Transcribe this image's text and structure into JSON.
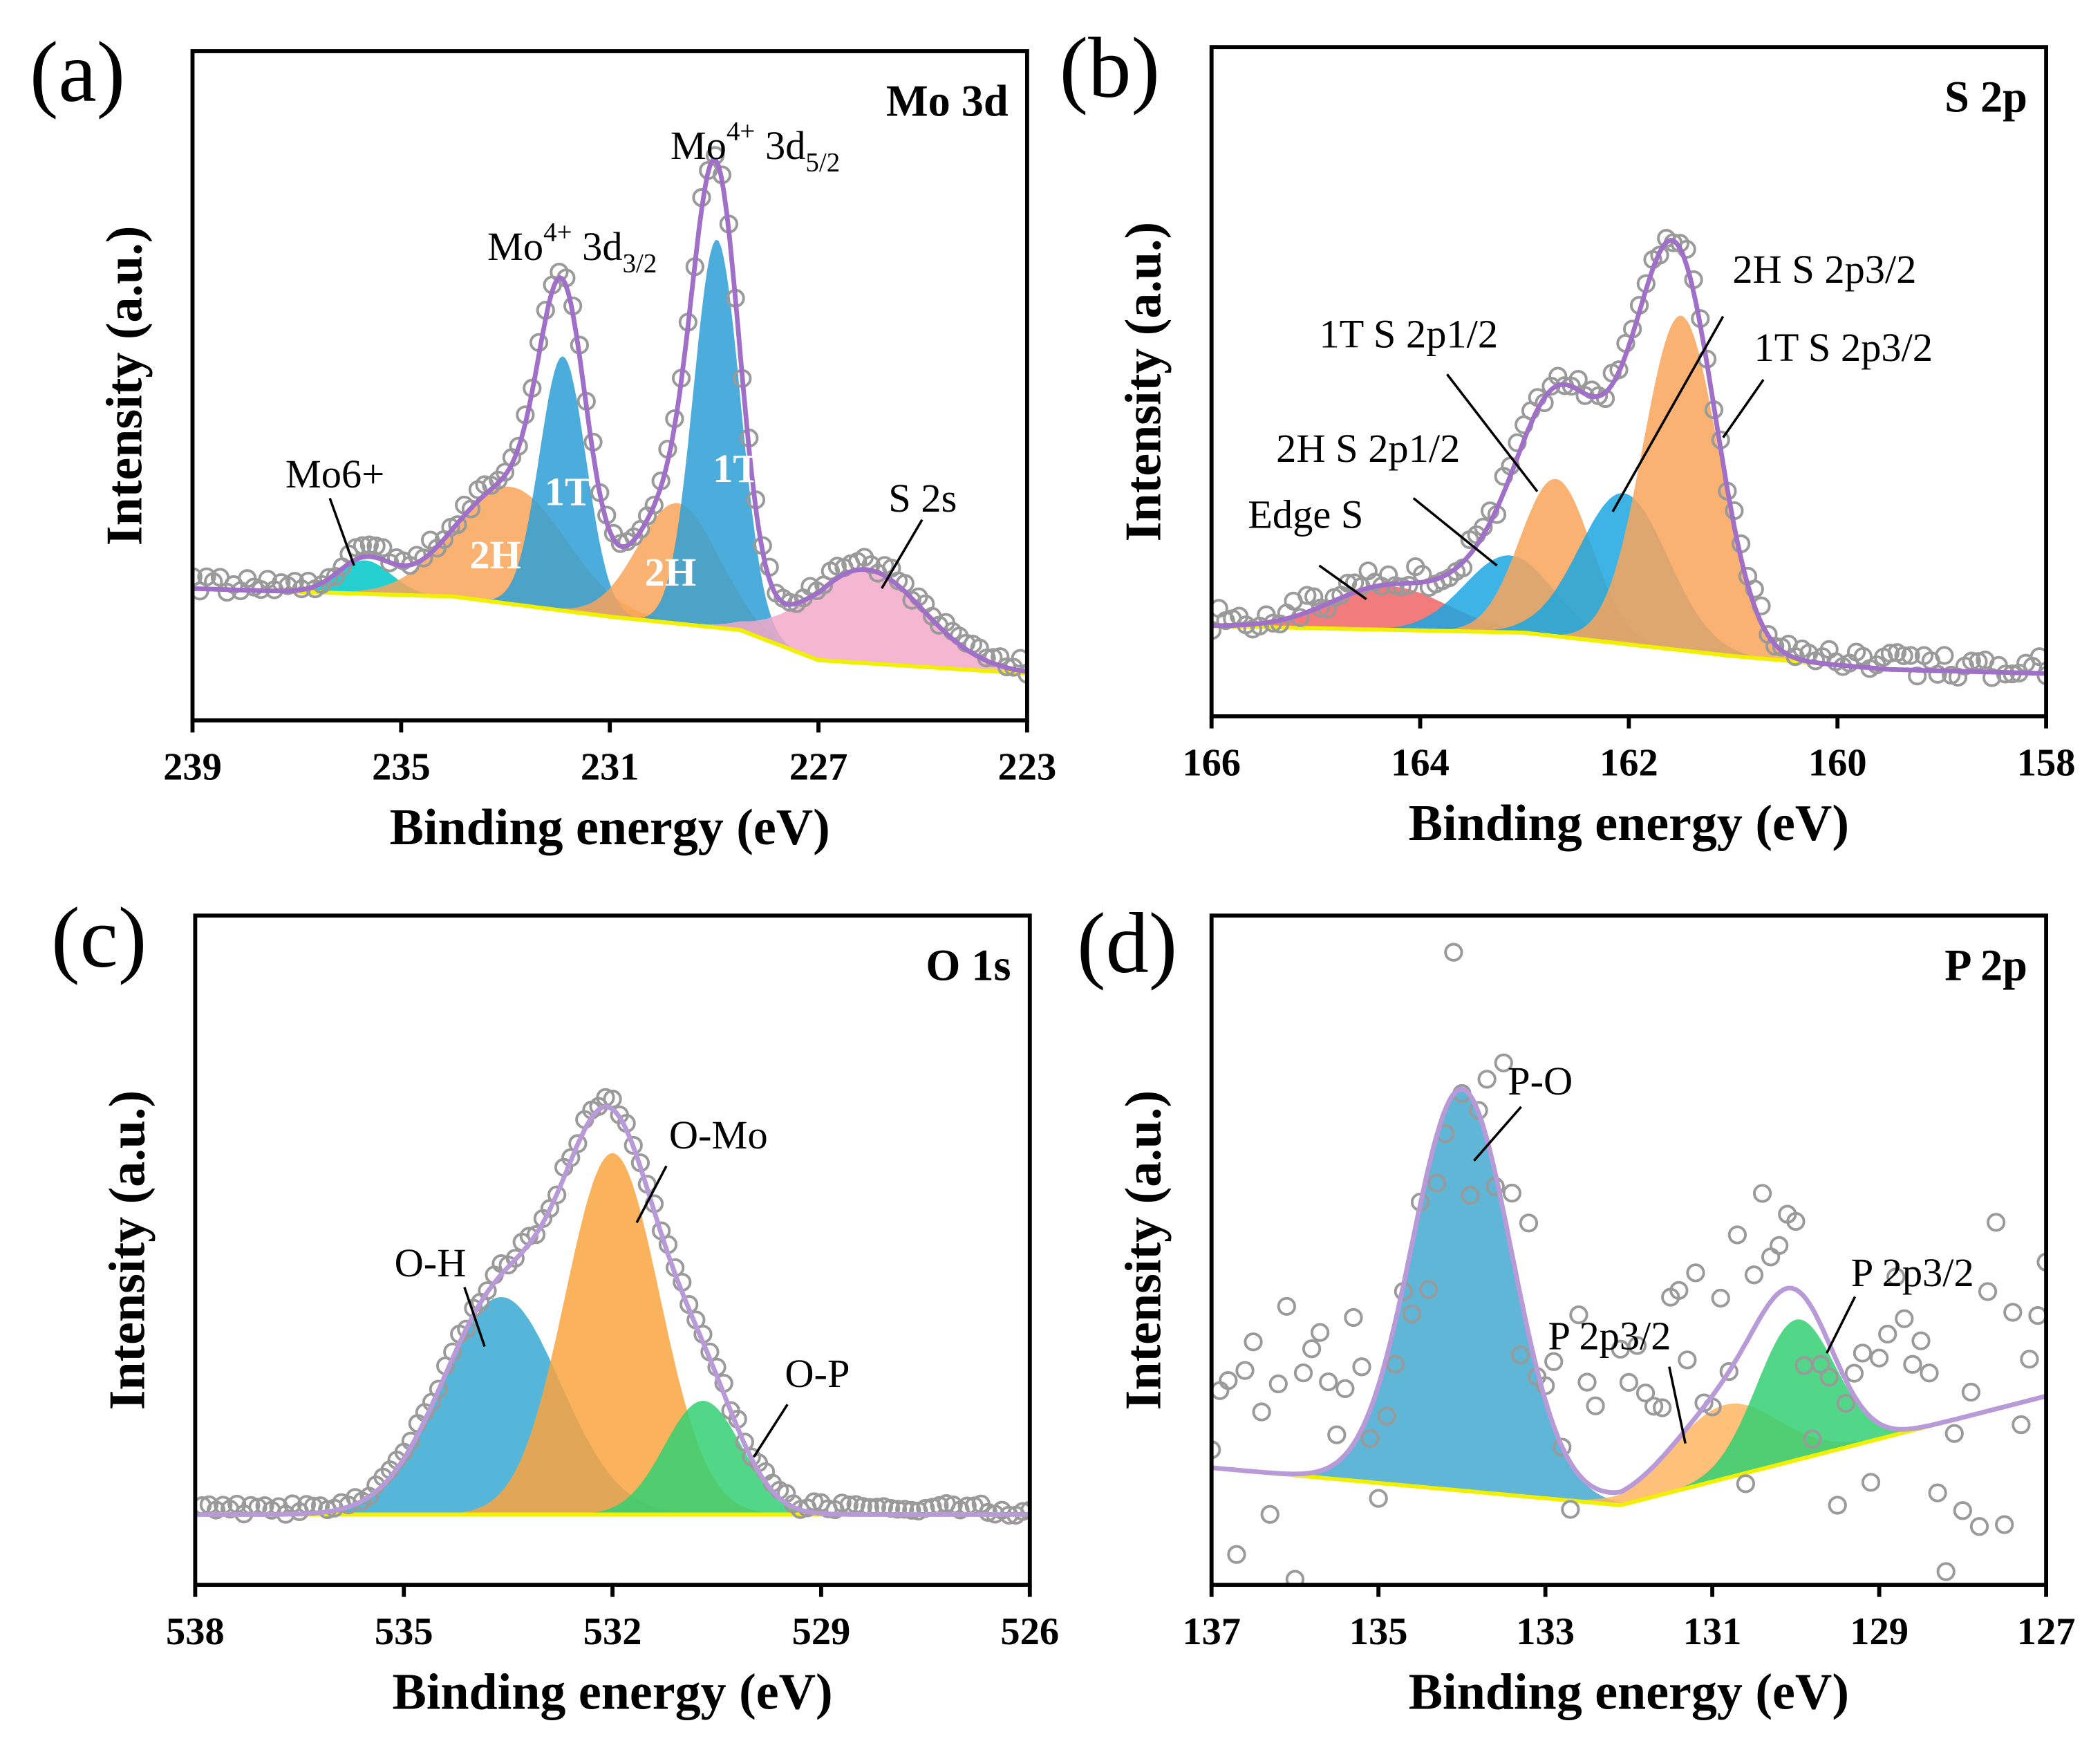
{
  "chart_data": [
    {
      "type": "area",
      "panel_letter": "(a)",
      "title": "Mo 3d",
      "xlabel": "Binding energy (eV)",
      "ylabel": "Intensity (a.u.)",
      "xlim": [
        239,
        223
      ],
      "xticks": [
        "239",
        "235",
        "231",
        "227",
        "223"
      ],
      "x_reversed": true,
      "ylim": [
        0,
        100
      ],
      "grid": false,
      "baseline": [
        [
          239,
          19.7
        ],
        [
          234,
          18.5
        ],
        [
          231,
          15.5
        ],
        [
          228.5,
          13.5
        ],
        [
          227,
          9
        ],
        [
          223,
          7
        ]
      ],
      "peaks": [
        {
          "label": "Mo6+",
          "center": 235.7,
          "height": 5,
          "fwhm": 1.2,
          "color": "#00c8c8"
        },
        {
          "label": "2H",
          "center": 232.9,
          "height": 17.5,
          "fwhm": 2.5,
          "color": "#f9a55a"
        },
        {
          "label": "1T",
          "center": 231.9,
          "height": 38,
          "fwhm": 1.05,
          "color": "#2d9fd6"
        },
        {
          "label": "2H",
          "center": 229.7,
          "height": 18,
          "fwhm": 1.8,
          "color": "#f9a55a"
        },
        {
          "label": "1T",
          "center": 228.95,
          "height": 58,
          "fwhm": 1.05,
          "color": "#2d9fd6"
        },
        {
          "label": "S 2s",
          "center": 226.1,
          "height": 14,
          "fwhm": 2.6,
          "color": "#f2a9c9"
        }
      ],
      "annotations": [
        {
          "text": "Mo",
          "sup": "6+",
          "mid": "",
          "sub": ""
        },
        {
          "text": "Mo",
          "sup": "4+",
          "mid": " 3d",
          "sub": "3/2"
        },
        {
          "text": "Mo",
          "sup": "4+",
          "mid": " 3d",
          "sub": "5/2"
        },
        {
          "text": "S 2s",
          "sup": "",
          "mid": "",
          "sub": ""
        }
      ],
      "peak_tags": [
        "2H",
        "1T",
        "2H",
        "1T"
      ],
      "envelope_color": "#a070c8",
      "baseline_color": "#f0f000",
      "points_color": "#9a9a9a"
    },
    {
      "type": "area",
      "panel_letter": "(b)",
      "title": "S 2p",
      "xlabel": "Binding energy (eV)",
      "ylabel": "Intensity (a.u.)",
      "xlim": [
        166,
        158
      ],
      "xticks": [
        "166",
        "164",
        "162",
        "160",
        "158"
      ],
      "x_reversed": true,
      "ylim": [
        0,
        100
      ],
      "grid": false,
      "baseline": [
        [
          166,
          13.5
        ],
        [
          163,
          12.5
        ],
        [
          161,
          9
        ],
        [
          159.5,
          7
        ],
        [
          158,
          6.4
        ]
      ],
      "peaks": [
        {
          "label": "Edge S",
          "center": 164.3,
          "height": 6.5,
          "fwhm": 1.3,
          "color": "#f06464"
        },
        {
          "label": "2H S 2p1/2",
          "center": 163.15,
          "height": 11.5,
          "fwhm": 1.0,
          "color": "#1ba7e0"
        },
        {
          "label": "1T S 2p1/2",
          "center": 162.7,
          "height": 23.5,
          "fwhm": 0.8,
          "color": "#f9a55a"
        },
        {
          "label": "2H S 2p3/2",
          "center": 162.05,
          "height": 22.5,
          "fwhm": 1.0,
          "color": "#1ba7e0"
        },
        {
          "label": "1T S 2p3/2",
          "center": 161.5,
          "height": 50,
          "fwhm": 0.85,
          "color": "#f9a55a"
        }
      ],
      "annotations": [
        {
          "text": "Edge S",
          "sup": "",
          "mid": "",
          "sub": ""
        },
        {
          "text": "2H S 2p",
          "sup": "",
          "mid": "",
          "sub": "1/2"
        },
        {
          "text": "1T S 2p",
          "sup": "",
          "mid": "",
          "sub": "1/2"
        },
        {
          "text": "2H S 2p",
          "sup": "",
          "mid": "",
          "sub": "3/2"
        },
        {
          "text": "1T S 2p",
          "sup": "",
          "mid": "",
          "sub": "3/2"
        }
      ],
      "peak_tags": [],
      "envelope_color": "#a070c8",
      "baseline_color": "#f0f000",
      "points_color": "#9a9a9a"
    },
    {
      "type": "area",
      "panel_letter": "(c)",
      "title": "O 1s",
      "xlabel": "Binding energy (eV)",
      "ylabel": "Intensity (a.u.)",
      "xlim": [
        538,
        526
      ],
      "xticks": [
        "538",
        "535",
        "532",
        "529",
        "526"
      ],
      "x_reversed": true,
      "ylim": [
        0,
        100
      ],
      "grid": false,
      "baseline": [
        [
          538,
          10.5
        ],
        [
          526,
          10.5
        ]
      ],
      "peaks": [
        {
          "label": "O-H",
          "center": 533.6,
          "height": 32.5,
          "fwhm": 2.0,
          "color": "#38a9d2"
        },
        {
          "label": "O-Mo",
          "center": 532.0,
          "height": 54,
          "fwhm": 1.6,
          "color": "#f9a540"
        },
        {
          "label": "O-P",
          "center": 530.7,
          "height": 17,
          "fwhm": 1.3,
          "color": "#32d072"
        }
      ],
      "annotations": [
        {
          "text": "O-H",
          "sup": "",
          "mid": "",
          "sub": ""
        },
        {
          "text": "O-Mo",
          "sup": "",
          "mid": "",
          "sub": ""
        },
        {
          "text": "O-P",
          "sup": "",
          "mid": "",
          "sub": ""
        }
      ],
      "peak_tags": [],
      "envelope_color": "#b89ad8",
      "baseline_color": "#f0f000",
      "points_color": "#9a9a9a"
    },
    {
      "type": "area",
      "panel_letter": "(d)",
      "title": "P 2p",
      "xlabel": "Binding energy (eV)",
      "ylabel": "Intensity (a.u.)",
      "xlim": [
        137,
        127
      ],
      "xticks": [
        "137",
        "135",
        "133",
        "131",
        "129",
        "127"
      ],
      "x_reversed": true,
      "ylim": [
        0,
        100
      ],
      "grid": false,
      "baseline": [
        [
          137,
          17.5
        ],
        [
          132.1,
          11.9
        ],
        [
          127,
          28.2
        ]
      ],
      "peaks": [
        {
          "label": "P-O",
          "center": 134.0,
          "height": 60,
          "fwhm": 1.4,
          "color": "#44a9d0"
        },
        {
          "label": "P 2p3/2",
          "center": 130.85,
          "height": 11,
          "fwhm": 1.5,
          "color": "#ffb562"
        },
        {
          "label": "P 2p3/2",
          "center": 130.0,
          "height": 21,
          "fwhm": 1.1,
          "color": "#32d072"
        }
      ],
      "annotations": [
        {
          "text": "P-O",
          "sup": "",
          "mid": "",
          "sub": ""
        },
        {
          "text": "P 2p",
          "sup": "",
          "mid": "",
          "sub": "3/2"
        },
        {
          "text": "P 2p",
          "sup": "",
          "mid": "",
          "sub": "3/2"
        }
      ],
      "peak_tags": [],
      "envelope_color": "#b89ad8",
      "baseline_color": "#f0f000",
      "points_color": "#9a9a9a"
    }
  ]
}
